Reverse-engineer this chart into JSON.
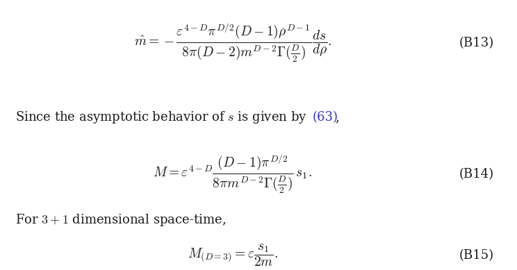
{
  "bg_color": "#ffffff",
  "text_color": "#1a1a1a",
  "link_color": "#3333cc",
  "label1": "(B13)",
  "label2": "(B14)",
  "label3": "(B15)",
  "figsize": [
    7.44,
    3.89
  ],
  "dpi": 100,
  "fs_eq": 14,
  "fs_text": 13,
  "fs_label": 13
}
